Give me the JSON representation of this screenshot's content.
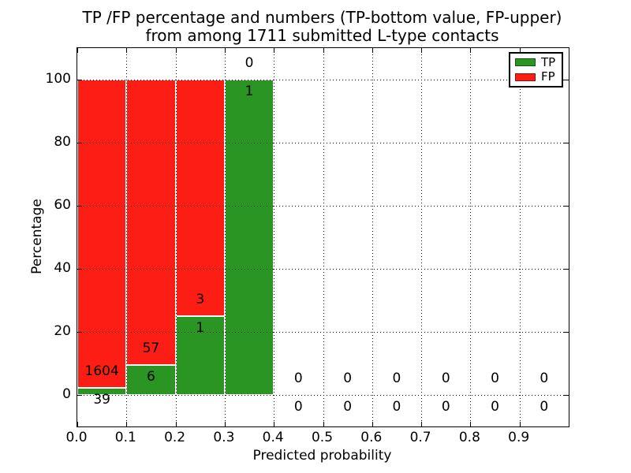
{
  "title": {
    "line1": "TP /FP percentage and numbers (TP-bottom value, FP-upper)",
    "line2": "from among 1711 submitted L-type contacts"
  },
  "axes": {
    "xlabel": "Predicted probability",
    "ylabel": "Percentage",
    "xtick_labels": [
      "0.0",
      "0.1",
      "0.2",
      "0.3",
      "0.4",
      "0.5",
      "0.6",
      "0.7",
      "0.8",
      "0.9"
    ],
    "xtick_values": [
      0.0,
      0.1,
      0.2,
      0.3,
      0.4,
      0.5,
      0.6,
      0.7,
      0.8,
      0.9
    ],
    "ytick_labels": [
      "0",
      "20",
      "40",
      "60",
      "80",
      "100"
    ],
    "ytick_values": [
      0,
      20,
      40,
      60,
      80,
      100
    ],
    "xlim": [
      0.0,
      1.0
    ],
    "ylim": [
      -10,
      110
    ],
    "grid": "dotted"
  },
  "legend": {
    "position": "upper-right",
    "entries": [
      {
        "label": "TP",
        "color": "#2a9523",
        "edge": "#14540f"
      },
      {
        "label": "FP",
        "color": "#fc1d14",
        "edge": "#8c120d"
      }
    ]
  },
  "chart_data": {
    "type": "bar",
    "stacked": true,
    "bin_width": 0.1,
    "bin_starts": [
      0.0,
      0.1,
      0.2,
      0.3,
      0.4,
      0.5,
      0.6,
      0.7,
      0.8,
      0.9
    ],
    "bin_centers": [
      0.05,
      0.15,
      0.25,
      0.35,
      0.45,
      0.55,
      0.65,
      0.75,
      0.85,
      0.95
    ],
    "series": [
      {
        "name": "TP",
        "color": "#2a9523",
        "percent": [
          2.37,
          9.52,
          25.0,
          100.0,
          0,
          0,
          0,
          0,
          0,
          0
        ],
        "counts": [
          39,
          6,
          1,
          1,
          0,
          0,
          0,
          0,
          0,
          0
        ]
      },
      {
        "name": "FP",
        "color": "#fc1d14",
        "percent": [
          97.63,
          90.48,
          75.0,
          0,
          0,
          0,
          0,
          0,
          0,
          0
        ],
        "counts": [
          1604,
          57,
          3,
          0,
          0,
          0,
          0,
          0,
          0,
          0
        ]
      }
    ],
    "total_contacts": 1711,
    "annotation_rule": "FP count above stack boundary, TP count below it",
    "title": "TP /FP percentage and numbers (TP-bottom value, FP-upper) from among 1711 submitted L-type contacts",
    "xlabel": "Predicted probability",
    "ylabel": "Percentage"
  }
}
